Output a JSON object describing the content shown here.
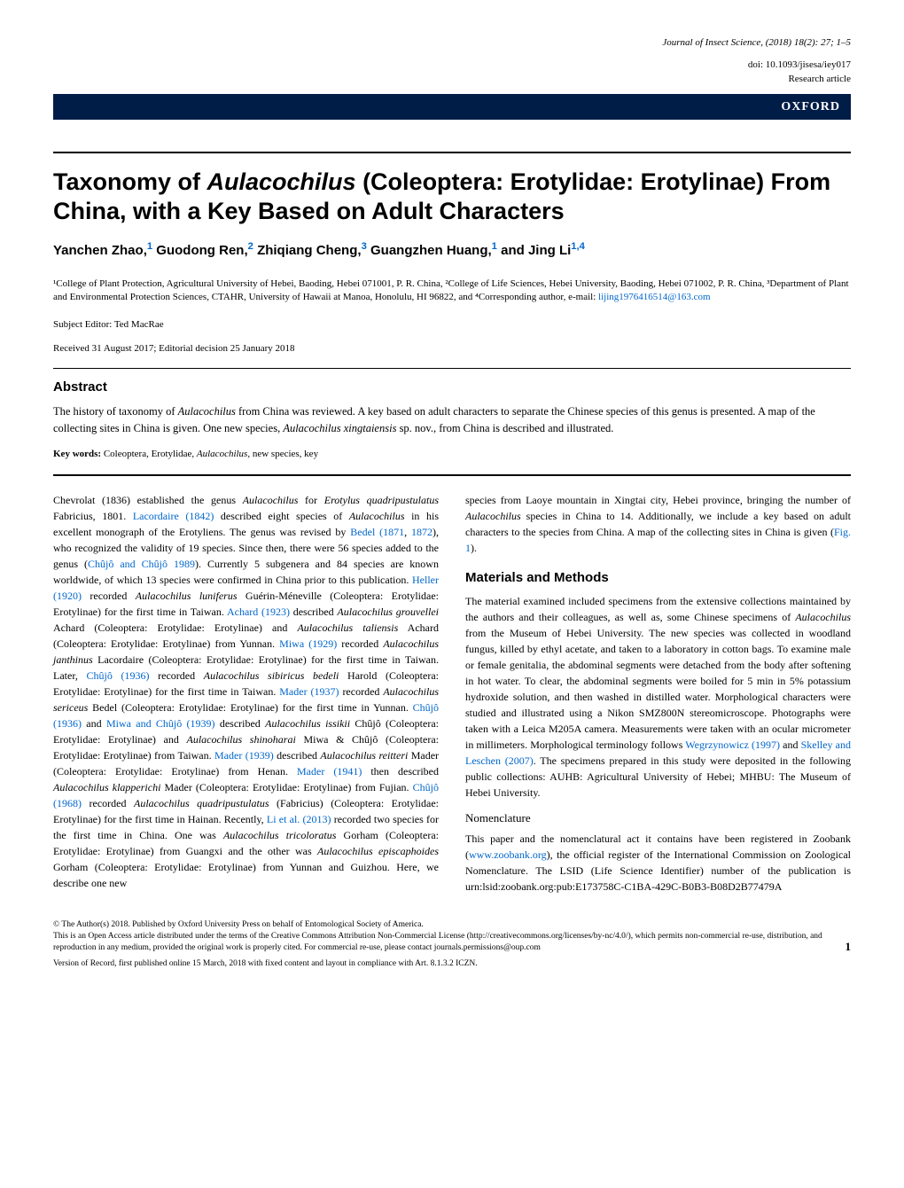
{
  "header": {
    "journal_line": "Journal of Insect Science, (2018) 18(2): 27; 1–5",
    "doi": "doi: 10.1093/jisesa/iey017",
    "article_type": "Research article",
    "publisher_logo": "OXFORD"
  },
  "title": {
    "prefix": "Taxonomy of ",
    "italic": "Aulacochilus",
    "suffix": " (Coleoptera: Erotylidae: Erotylinae) From China, with a Key Based on Adult Characters"
  },
  "authors": {
    "a1_name": "Yanchen Zhao,",
    "a1_sup": "1",
    "a2_name": " Guodong Ren,",
    "a2_sup": "2",
    "a3_name": " Zhiqiang Cheng,",
    "a3_sup": "3",
    "a4_name": " Guangzhen Huang,",
    "a4_sup": "1",
    "a5_name": " and Jing Li",
    "a5_sup": "1,4"
  },
  "affiliations": {
    "text_prefix": "¹College of Plant Protection, Agricultural University of Hebei, Baoding, Hebei 071001, P. R. China, ²College of Life Sciences, Hebei University, Baoding, Hebei 071002, P. R. China, ³Department of Plant and Environmental Protection Sciences, CTAHR, University of Hawaii at Manoa, Honolulu, HI 96822, and ⁴Corresponding author, e-mail: ",
    "email": "lijing1976416514@163.com"
  },
  "subject_editor": "Subject Editor: Ted MacRae",
  "received": "Received 31 August 2017; Editorial decision 25 January 2018",
  "abstract": {
    "heading": "Abstract",
    "p1a": "The history of taxonomy of ",
    "p1i1": "Aulacochilus",
    "p1b": " from China was reviewed. A key based on adult characters to separate the Chinese species of this genus is presented. A map of the collecting sites in China is given. One new species, ",
    "p1i2": "Aulacochilus xingtaiensis",
    "p1c": " sp. nov., from China is described and illustrated."
  },
  "keywords": {
    "label": "Key words: ",
    "text": " Coleoptera, Erotylidae, ",
    "italic": "Aulacochilus",
    "text2": ", new species, key"
  },
  "left_col": {
    "p1": "Chevrolat (1836) established the genus <em>Aulacochilus</em> for <em>Erotylus quadripustulatus</em> Fabricius, 1801. <span class=\"cite\">Lacordaire (1842)</span> described eight species of <em>Aulacochilus</em> in his excellent monograph of the Erotyliens. The genus was revised by <span class=\"cite\">Bedel (1871</span>, <span class=\"cite\">1872</span>), who recognized the validity of 19 species. Since then, there were 56 species added to the genus (<span class=\"cite\">Chûjô and Chûjô 1989</span>). Currently 5 subgenera and 84 species are known worldwide, of which 13 species were confirmed in China prior to this publication. <span class=\"cite\">Heller (1920)</span> recorded <em>Aulacochilus luniferus</em> Guérin-Méneville (Coleoptera: Erotylidae: Erotylinae) for the first time in Taiwan. <span class=\"cite\">Achard (1923)</span> described <em>Aulacochilus grouvellei</em> Achard (Coleoptera: Erotylidae: Erotylinae) and <em>Aulacochilus taliensis</em> Achard (Coleoptera: Erotylidae: Erotylinae) from Yunnan. <span class=\"cite\">Miwa (1929)</span> recorded <em>Aulacochilus janthinus</em> Lacordaire (Coleoptera: Erotylidae: Erotylinae) for the first time in Taiwan. Later, <span class=\"cite\">Chûjô (1936)</span> recorded <em>Aulacochilus sibiricus bedeli</em> Harold (Coleoptera: Erotylidae: Erotylinae) for the first time in Taiwan. <span class=\"cite\">Mader (1937)</span> recorded <em>Aulacochilus sericeus</em> Bedel (Coleoptera: Erotylidae: Erotylinae) for the first time in Yunnan. <span class=\"cite\">Chûjô (1936)</span> and <span class=\"cite\">Miwa and Chûjô (1939)</span> described <em>Aulacochilus issikii</em> Chûjô (Coleoptera: Erotylidae: Erotylinae) and <em>Aulacochilus shinoharai</em> Miwa & Chûjô (Coleoptera: Erotylidae: Erotylinae) from Taiwan. <span class=\"cite\">Mader (1939)</span> described <em>Aulacochilus reitteri</em> Mader (Coleoptera: Erotylidae: Erotylinae) from Henan. <span class=\"cite\">Mader (1941)</span> then described <em>Aulacochilus klapperichi</em> Mader (Coleoptera: Erotylidae: Erotylinae) from Fujian. <span class=\"cite\">Chûjô (1968)</span> recorded <em>Aulacochilus quadripustulatus</em> (Fabricius) (Coleoptera: Erotylidae: Erotylinae) for the first time in Hainan. Recently, <span class=\"cite\">Li et al. (2013)</span> recorded two species for the first time in China. One was <em>Aulacochilus tricoloratus</em> Gorham (Coleoptera: Erotylidae: Erotylinae) from Guangxi and the other was <em>Aulacochilus episcaphoides</em> Gorham (Coleoptera: Erotylidae: Erotylinae) from Yunnan and Guizhou. Here, we describe one new"
  },
  "right_col": {
    "p1": "species from Laoye mountain in Xingtai city, Hebei province, bringing the number of <em>Aulacochilus</em> species in China to 14. Additionally, we include a key based on adult characters to the species from China. A map of the collecting sites in China is given (<span class=\"cite\">Fig. 1</span>).",
    "section_heading": "Materials and Methods",
    "p2": "The material examined included specimens from the extensive collections maintained by the authors and their colleagues, as well as, some Chinese specimens of <em>Aulacochilus</em> from the Museum of Hebei University. The new species was collected in woodland fungus, killed by ethyl acetate, and taken to a laboratory in cotton bags. To examine male or female genitalia, the abdominal segments were detached from the body after softening in hot water. To clear, the abdominal segments were boiled for 5 min in 5% potassium hydroxide solution, and then washed in distilled water. Morphological characters were studied and illustrated using a Nikon SMZ800N stereomicroscope. Photographs were taken with a Leica M205A camera. Measurements were taken with an ocular micrometer in millimeters. Morphological terminology follows <span class=\"cite\">Wegrzynowicz (1997)</span> and <span class=\"cite\">Skelley and Leschen (2007)</span>. The specimens prepared in this study were deposited in the following public collections: AUHB: Agricultural University of Hebei; MHBU: The Museum of Hebei University.",
    "subsection": "Nomenclature",
    "p3": "This paper and the nomenclatural act it contains have been registered in Zoobank (<span class=\"cite\">www.zoobank.org</span>), the official register of the International Commission on Zoological Nomenclature. The LSID (Life Science Identifier) number of the publication is urn:lsid:zoobank.org:pub:E173758C-C1BA-429C-B0B3-B08D2B77479A"
  },
  "footer": {
    "copyright": "© The Author(s) 2018. Published by Oxford University Press on behalf of Entomological Society of America.",
    "license": "This is an Open Access article distributed under the terms of the Creative Commons Attribution Non-Commercial License (http://creativecommons.org/licenses/by-nc/4.0/), which permits non-commercial re-use, distribution, and reproduction in any medium, provided the original work is properly cited. For commercial re-use, please contact journals.permissions@oup.com",
    "version": "Version of Record, first published online 15 March, 2018 with fixed content and layout in compliance with Art. 8.1.3.2 ICZN.",
    "page_num": "1"
  },
  "colors": {
    "oxford_bg": "#001d47",
    "link": "#0066cc",
    "text": "#000000",
    "bg": "#ffffff"
  },
  "fonts": {
    "body_family": "Georgia, Times New Roman, serif",
    "heading_family": "Arial, Helvetica, sans-serif",
    "body_size_pt": 12,
    "title_size_pt": 27,
    "author_size_pt": 15,
    "abstract_heading_pt": 15,
    "footer_size_pt": 9.5
  }
}
